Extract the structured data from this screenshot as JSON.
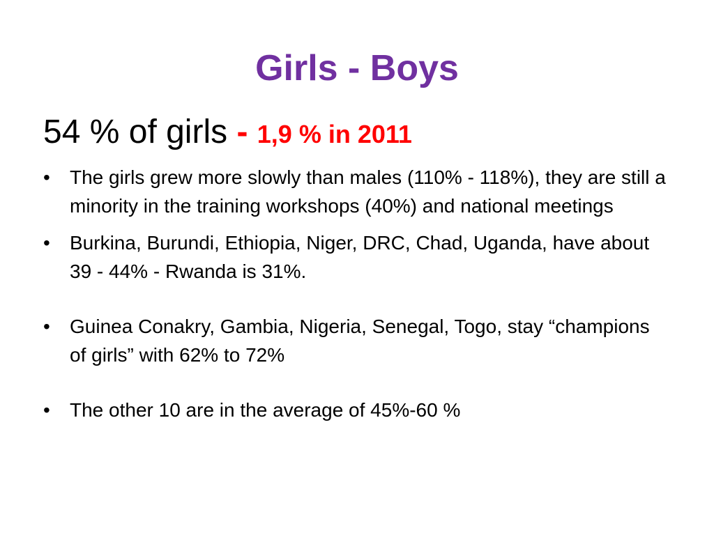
{
  "colors": {
    "title": "#7030A0",
    "accent": "#FF0000",
    "text": "#000000",
    "background": "#FFFFFF"
  },
  "slide": {
    "title": "Girls - Boys",
    "headline": {
      "lead": "54 % of girls ",
      "dash": "- ",
      "stat": "1,9 % in  2011"
    },
    "bullet_marker": "•",
    "bullets": [
      "The girls grew more slowly than males (110% - 118%), they are still a minority in the training workshops (40%) and national meetings",
      "Burkina, Burundi, Ethiopia, Niger, DRC, Chad, Uganda, have about 39 - 44% - Rwanda is 31%.",
      "Guinea Conakry, Gambia, Nigeria, Senegal, Togo, stay “champions of girls” with 62% to 72%",
      "The other 10 are in the average of 45%-60 %"
    ]
  }
}
